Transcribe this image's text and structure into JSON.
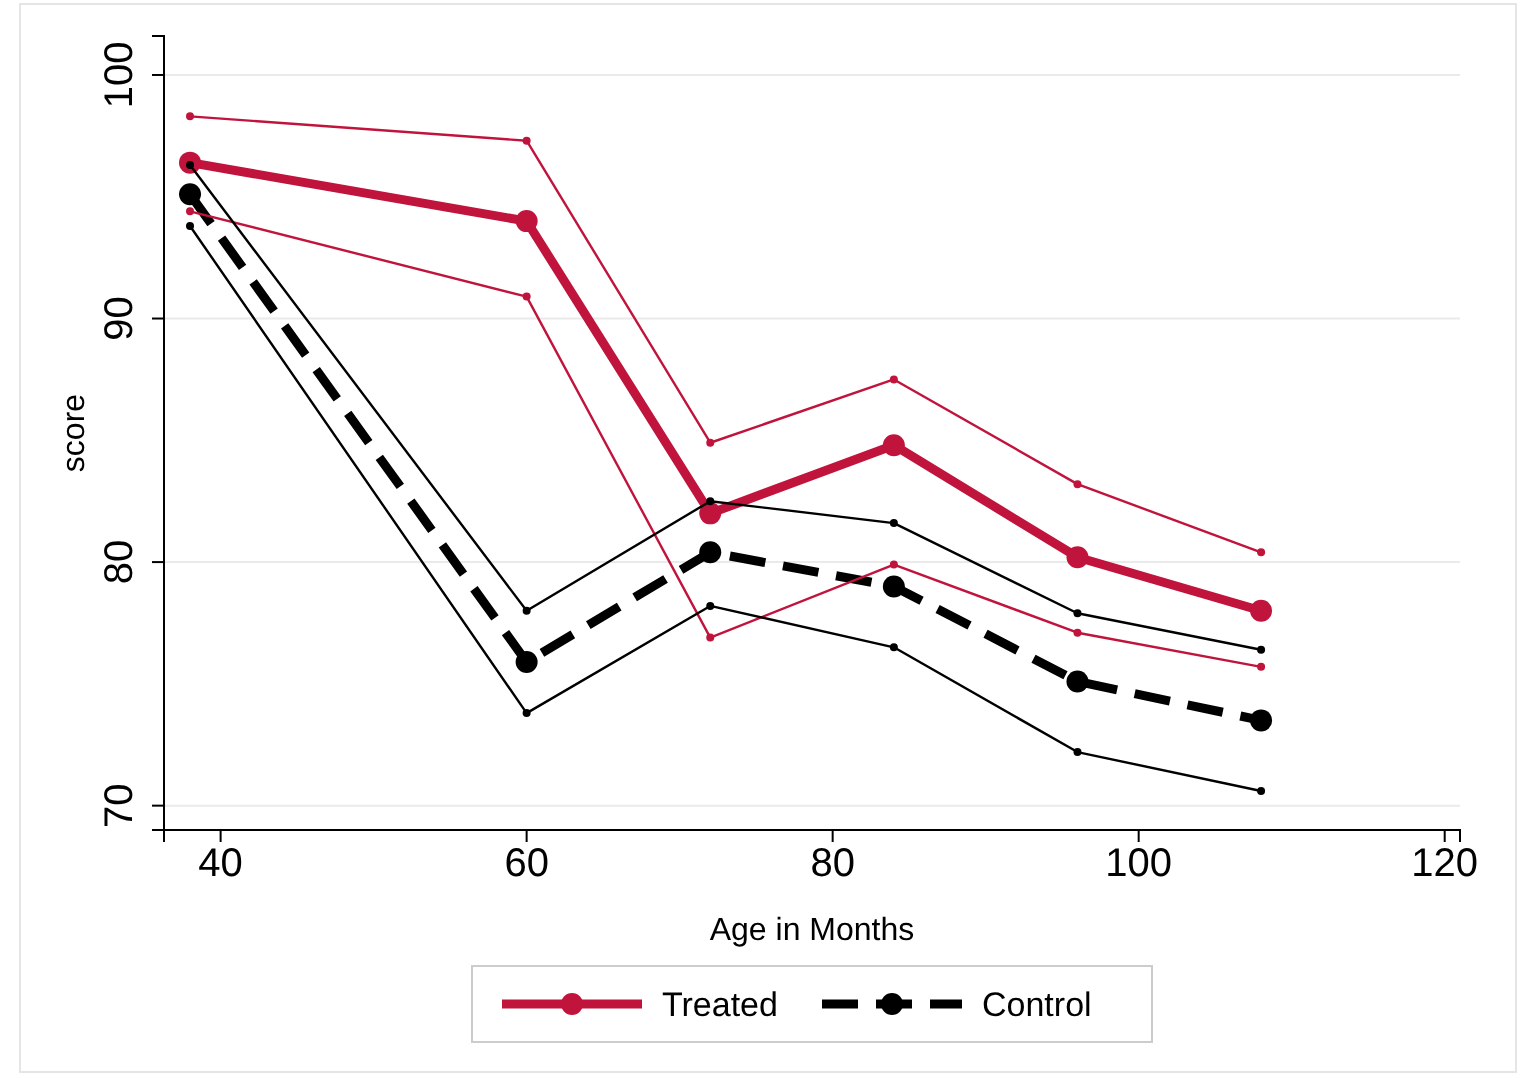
{
  "chart_data": {
    "type": "line",
    "xlabel": "Age in Months",
    "ylabel": "score",
    "x": [
      38,
      60,
      72,
      84,
      96,
      108
    ],
    "series": [
      {
        "name": "Treated",
        "color": "#c0143c",
        "values": [
          96.4,
          94.0,
          82.0,
          84.8,
          80.2,
          78.0
        ],
        "line_style": "solid"
      },
      {
        "name": "Control",
        "color": "#000000",
        "values": [
          95.1,
          75.9,
          80.4,
          79.0,
          75.1,
          73.5
        ],
        "line_style": "dashed"
      },
      {
        "color": "#c0143c",
        "values": [
          98.3,
          97.3,
          84.9,
          87.5,
          83.2,
          80.4
        ],
        "line_style": "solid"
      },
      {
        "color": "#c0143c",
        "values": [
          94.4,
          90.9,
          76.9,
          79.9,
          77.1,
          75.7
        ],
        "line_style": "solid"
      },
      {
        "color": "#000000",
        "values": [
          96.3,
          78.0,
          82.5,
          81.6,
          77.9,
          76.4
        ],
        "line_style": "solid"
      },
      {
        "color": "#000000",
        "values": [
          93.8,
          73.8,
          78.2,
          76.5,
          72.2,
          70.6
        ],
        "line_style": "solid"
      }
    ],
    "xlim": [
      36.3,
      121
    ],
    "ylim": [
      69,
      101.6
    ],
    "xticks": [
      40,
      60,
      80,
      100,
      120
    ],
    "yticks": [
      70,
      80,
      90,
      100
    ],
    "grid": "y",
    "marker": "circle",
    "legend": "bottom"
  }
}
